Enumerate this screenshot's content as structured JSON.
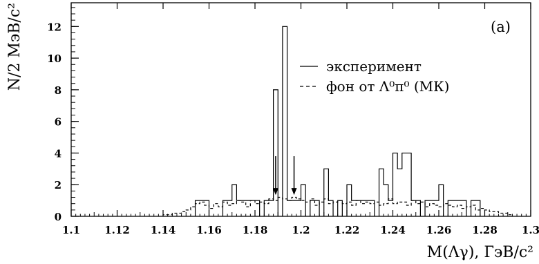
{
  "chart_data": {
    "type": "histogram",
    "panel_label": "(a)",
    "xlabel": "M(Λγ),  ГэВ/c²",
    "ylabel": "N/2 МэВ/c²",
    "xlim": [
      1.1,
      1.3
    ],
    "ylim": [
      0,
      13.5
    ],
    "bin_width": 0.002,
    "x_ticks": [
      1.1,
      1.12,
      1.14,
      1.16,
      1.18,
      1.2,
      1.22,
      1.24,
      1.26,
      1.28,
      1.3
    ],
    "x_tick_labels": [
      "1.1",
      "1.12",
      "1.14",
      "1.16",
      "1.18",
      "1.2",
      "1.22",
      "1.24",
      "1.26",
      "1.28",
      "1.3"
    ],
    "y_ticks": [
      0,
      2,
      4,
      6,
      8,
      10,
      12
    ],
    "y_tick_labels": [
      "0",
      "2",
      "4",
      "6",
      "8",
      "10",
      "12"
    ],
    "cut_arrows_x": [
      1.189,
      1.197
    ],
    "series": [
      {
        "name": "эксперимент",
        "style": "solid",
        "color": "#000000",
        "bin_starts": [
          1.154,
          1.156,
          1.158,
          1.166,
          1.168,
          1.17,
          1.172,
          1.174,
          1.176,
          1.178,
          1.18,
          1.184,
          1.186,
          1.188,
          1.192,
          1.194,
          1.196,
          1.198,
          1.2,
          1.204,
          1.206,
          1.21,
          1.212,
          1.216,
          1.22,
          1.222,
          1.224,
          1.226,
          1.228,
          1.23,
          1.234,
          1.236,
          1.238,
          1.24,
          1.242,
          1.244,
          1.246,
          1.248,
          1.25,
          1.254,
          1.256,
          1.258,
          1.26,
          1.264,
          1.266,
          1.268,
          1.27,
          1.274,
          1.276
        ],
        "values": [
          1,
          1,
          1,
          1,
          1,
          2,
          1,
          1,
          1,
          1,
          1,
          1,
          1,
          8,
          12,
          1,
          1,
          1,
          2,
          1,
          1,
          3,
          1,
          1,
          2,
          1,
          1,
          1,
          1,
          1,
          3,
          2,
          1,
          4,
          3,
          4,
          4,
          1,
          1,
          1,
          1,
          1,
          2,
          1,
          1,
          1,
          1,
          1,
          1
        ]
      },
      {
        "name": "фон от Λ⁰π⁰ (МК)",
        "style": "dashed",
        "color": "#000000",
        "bin_starts": [
          1.14,
          1.142,
          1.144,
          1.146,
          1.148,
          1.15,
          1.152,
          1.154,
          1.156,
          1.158,
          1.16,
          1.162,
          1.164,
          1.166,
          1.168,
          1.17,
          1.172,
          1.174,
          1.176,
          1.178,
          1.18,
          1.182,
          1.184,
          1.186,
          1.188,
          1.19,
          1.192,
          1.194,
          1.196,
          1.198,
          1.2,
          1.202,
          1.204,
          1.206,
          1.208,
          1.21,
          1.212,
          1.214,
          1.216,
          1.218,
          1.22,
          1.222,
          1.224,
          1.226,
          1.228,
          1.23,
          1.232,
          1.234,
          1.236,
          1.238,
          1.24,
          1.242,
          1.244,
          1.246,
          1.248,
          1.25,
          1.252,
          1.254,
          1.256,
          1.258,
          1.26,
          1.262,
          1.264,
          1.266,
          1.268,
          1.27,
          1.272,
          1.274,
          1.276,
          1.278,
          1.28,
          1.282,
          1.284,
          1.286,
          1.288,
          1.29
        ],
        "values": [
          0.1,
          0.1,
          0.2,
          0.2,
          0.3,
          0.4,
          0.6,
          0.8,
          0.9,
          0.7,
          0.5,
          0.8,
          0.6,
          0.9,
          0.7,
          0.8,
          1.0,
          0.9,
          0.6,
          1.0,
          0.8,
          0.9,
          0.8,
          1.1,
          1.0,
          1.2,
          1.1,
          1.0,
          1.2,
          1.1,
          1.0,
          0.9,
          1.1,
          0.7,
          0.9,
          1.1,
          0.8,
          0.9,
          1.0,
          0.8,
          0.9,
          0.7,
          1.0,
          0.8,
          0.9,
          0.8,
          0.9,
          0.7,
          0.8,
          1.1,
          0.8,
          0.9,
          0.9,
          0.7,
          1.0,
          0.8,
          0.9,
          0.6,
          0.8,
          0.7,
          0.6,
          0.8,
          0.7,
          0.6,
          0.7,
          0.5,
          0.6,
          0.7,
          0.4,
          0.5,
          0.4,
          0.3,
          0.3,
          0.2,
          0.2,
          0.1
        ]
      }
    ],
    "legend": [
      {
        "label": "эксперимент",
        "style": "solid"
      },
      {
        "label": "фон от Λ⁰π⁰ (МК)",
        "style": "dashed"
      }
    ]
  }
}
